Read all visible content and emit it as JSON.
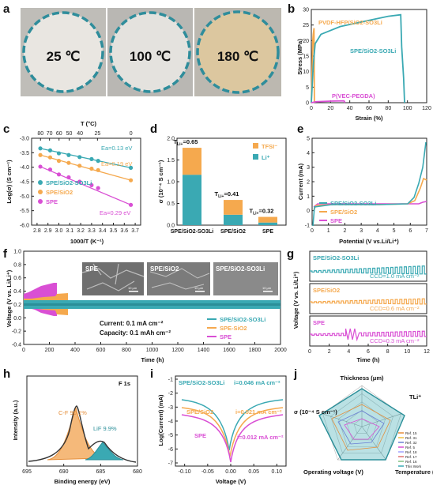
{
  "panels": {
    "a": {
      "label": "a",
      "temps": [
        "25 ℃",
        "100 ℃",
        "180 ℃"
      ]
    },
    "b": {
      "label": "b",
      "ylabel": "Stress (MPa)",
      "xlabel": "Strain (%)",
      "xticks": [
        "0",
        "20",
        "40",
        "60",
        "80",
        "100",
        "120"
      ],
      "yticks": [
        "0",
        "5",
        "10",
        "15",
        "20",
        "25",
        "30"
      ],
      "series": [
        {
          "name": "PVDF-HFP/SiO2-SO3Li",
          "color": "#f5a94e",
          "points": [
            [
              0,
              0
            ],
            [
              1.5,
              20
            ],
            [
              2,
              22
            ],
            [
              2.8,
              24
            ],
            [
              3.2,
              0
            ]
          ]
        },
        {
          "name": "SPE/SiO2-SO3Li",
          "color": "#3aa9b3",
          "points": [
            [
              0,
              0
            ],
            [
              2,
              12
            ],
            [
              4,
              19
            ],
            [
              10,
              22
            ],
            [
              30,
              24.5
            ],
            [
              60,
              26.5
            ],
            [
              80,
              27.8
            ],
            [
              93,
              28.3
            ],
            [
              94,
              18
            ],
            [
              96,
              8
            ],
            [
              97,
              0
            ]
          ]
        },
        {
          "name": "P(VEC-PEGDA)",
          "color": "#d94fd4",
          "points": [
            [
              0,
              0
            ],
            [
              5,
              0.3
            ],
            [
              20,
              0.5
            ],
            [
              34,
              0.6
            ],
            [
              35,
              0
            ]
          ]
        }
      ]
    },
    "c": {
      "label": "c",
      "top_axis_title": "T (°C)",
      "top_ticks": [
        "80",
        "70",
        "60",
        "50",
        "40",
        "25",
        "0"
      ],
      "ylabel": "Log(σ) (S cm⁻¹)",
      "xlabel": "1000/T (K⁻¹)",
      "xticks": [
        "2.8",
        "2.9",
        "3.0",
        "3.1",
        "3.2",
        "3.3",
        "3.4",
        "3.5",
        "3.6",
        "3.7"
      ],
      "yticks": [
        "-3.0",
        "-3.5",
        "-4.0",
        "-4.5",
        "-5.0",
        "-5.5",
        "-6.0"
      ],
      "series": [
        {
          "name": "SPE/SiO2-SO3Li",
          "ea": "Ea=0.13 eV",
          "color": "#3aa9b3",
          "points": [
            [
              2.83,
              -3.35
            ],
            [
              2.92,
              -3.42
            ],
            [
              3.0,
              -3.52
            ],
            [
              3.09,
              -3.58
            ],
            [
              3.19,
              -3.65
            ],
            [
              3.3,
              -3.72
            ],
            [
              3.36,
              -3.78
            ],
            [
              3.66,
              -4.02
            ]
          ]
        },
        {
          "name": "SPE/SiO2",
          "ea": "Ea=0.19 eV",
          "color": "#f5a94e",
          "points": [
            [
              2.83,
              -3.58
            ],
            [
              2.92,
              -3.66
            ],
            [
              3.0,
              -3.78
            ],
            [
              3.09,
              -3.85
            ],
            [
              3.19,
              -3.95
            ],
            [
              3.3,
              -4.05
            ],
            [
              3.36,
              -4.1
            ],
            [
              3.66,
              -4.45
            ]
          ]
        },
        {
          "name": "SPE",
          "ea": "Ea=0.29 eV",
          "color": "#d94fd4",
          "points": [
            [
              2.83,
              -3.98
            ],
            [
              2.92,
              -4.08
            ],
            [
              3.0,
              -4.25
            ],
            [
              3.09,
              -4.35
            ],
            [
              3.19,
              -4.5
            ],
            [
              3.3,
              -4.62
            ],
            [
              3.36,
              -4.72
            ],
            [
              3.66,
              -5.3
            ]
          ]
        }
      ]
    },
    "d": {
      "label": "d",
      "ylabel": "σ (10⁻⁴ S cm⁻¹)",
      "yticks": [
        "0.0",
        "0.5",
        "1.0",
        "1.5",
        "2.0"
      ],
      "legend": [
        "TFSI⁻",
        "Li⁺"
      ],
      "bars": [
        {
          "name": "SPE/SiO2-SO3Li",
          "t": "0.65",
          "li": 1.16,
          "total": 1.78
        },
        {
          "name": "SPE/SiO2",
          "t": "0.41",
          "li": 0.24,
          "total": 0.58
        },
        {
          "name": "SPE",
          "t": "0.32",
          "li": 0.06,
          "total": 0.19
        }
      ]
    },
    "e": {
      "label": "e",
      "ylabel": "Current (mA)",
      "xlabel": "Potential (V vs.Li/Li⁺)",
      "xticks": [
        "0",
        "1",
        "2",
        "3",
        "4",
        "5",
        "6",
        "7"
      ],
      "yticks": [
        "-1",
        "0",
        "1",
        "2",
        "3",
        "4",
        "5"
      ],
      "series": [
        "SPE/SiO2-SO3Li",
        "SPE/SiO2",
        "SPE"
      ]
    },
    "f": {
      "label": "f",
      "ylabel": "Voltage (V vs. Li/Li⁺)",
      "xlabel": "Time (h)",
      "xticks": [
        "0",
        "200",
        "400",
        "600",
        "800",
        "1000",
        "1200",
        "1400",
        "1600",
        "1800",
        "2000"
      ],
      "yticks": [
        "-0.4",
        "-0.2",
        "0.0",
        "0.2",
        "0.4",
        "0.6",
        "0.8",
        "1.0"
      ],
      "insets": [
        "SPE",
        "SPE/SiO2",
        "SPE/SiO2-SO3Li"
      ],
      "scalebar": "10 μm",
      "current": "Current: 0.1 mA cm⁻²",
      "capacity": "Capacity: 0.1 mAh cm⁻²",
      "legend": [
        "SPE/SiO2-SO3Li",
        "SPE-SiO2",
        "SPE"
      ]
    },
    "g": {
      "label": "g",
      "ylabel": "Voltage (V vs. Li/Li⁺)",
      "xlabel": "Time (h)",
      "xticks": [
        "0",
        "2",
        "4",
        "6",
        "8",
        "10",
        "12"
      ],
      "rows": [
        {
          "name": "SPE/SiO2-SO3Li",
          "ccd": "CCD=1.0 mA cm⁻²",
          "color": "#3aa9b3"
        },
        {
          "name": "SPE/SiO2",
          "ccd": "CCD=0.6 mA cm⁻²",
          "color": "#f5a94e"
        },
        {
          "name": "SPE",
          "ccd": "CCD=0.3 mA cm⁻²",
          "color": "#d94fd4"
        }
      ]
    },
    "h": {
      "label": "h",
      "ylabel": "Intensity (a.u.)",
      "xlabel": "Binding energy (eV)",
      "title": "F 1s",
      "xticks": [
        "695",
        "690",
        "685",
        "680"
      ],
      "peak1": "C-F 90.1%",
      "peak2": "LiF 9.9%"
    },
    "i": {
      "label": "i",
      "ylabel": "Log(Current) (mA)",
      "xlabel": "Voltage (V)",
      "xticks": [
        "-0.10",
        "-0.05",
        "0.00",
        "0.05",
        "0.10"
      ],
      "yticks": [
        "-1",
        "-2",
        "-3",
        "-4",
        "-5",
        "-6",
        "-7"
      ],
      "series": [
        {
          "name": "SPE/SiO2-SO3Li",
          "i": "i=0.046 mA cm⁻²",
          "color": "#3aa9b3"
        },
        {
          "name": "SPE/SiO2",
          "i": "i=0.021 mA cm⁻²",
          "color": "#f5a94e"
        },
        {
          "name": "SPE",
          "i": "i=0.012 mA cm⁻²",
          "color": "#d94fd4"
        }
      ]
    },
    "j": {
      "label": "j",
      "axes": [
        "Thickness (μm)",
        "TLi⁺",
        "Temperature (°C)",
        "Operating voltage (V)",
        "σ (10⁻⁴ S cm⁻¹)"
      ],
      "refs": [
        "Ref. 15",
        "Ref. 31",
        "Ref. 32",
        "Ref. 5",
        "Ref. 18",
        "Ref. 17",
        "Ref. 16",
        "This Work"
      ]
    }
  },
  "chart_data": [
    {
      "type": "scatter",
      "title": "",
      "xlabel": "Strain (%)",
      "ylabel": "Stress (MPa)",
      "xlim": [
        0,
        120
      ],
      "ylim": [
        0,
        30
      ]
    },
    {
      "type": "scatter",
      "xlabel": "1000/T (K⁻¹)",
      "ylabel": "Log(σ) (S cm⁻¹)",
      "xlim": [
        2.75,
        3.75
      ],
      "ylim": [
        -6,
        -3
      ]
    },
    {
      "type": "bar",
      "categories": [
        "SPE/SiO2-SO3Li",
        "SPE/SiO2",
        "SPE"
      ],
      "series": [
        {
          "name": "Li⁺",
          "values": [
            1.16,
            0.24,
            0.06
          ]
        },
        {
          "name": "TFSI⁻",
          "values": [
            0.62,
            0.34,
            0.13
          ]
        }
      ],
      "ylabel": "σ (10⁻⁴ S cm⁻¹)",
      "ylim": [
        0,
        2.0
      ]
    }
  ],
  "colors": {
    "teal": "#3aa9b3",
    "orange": "#f5a94e",
    "magenta": "#d94fd4"
  }
}
